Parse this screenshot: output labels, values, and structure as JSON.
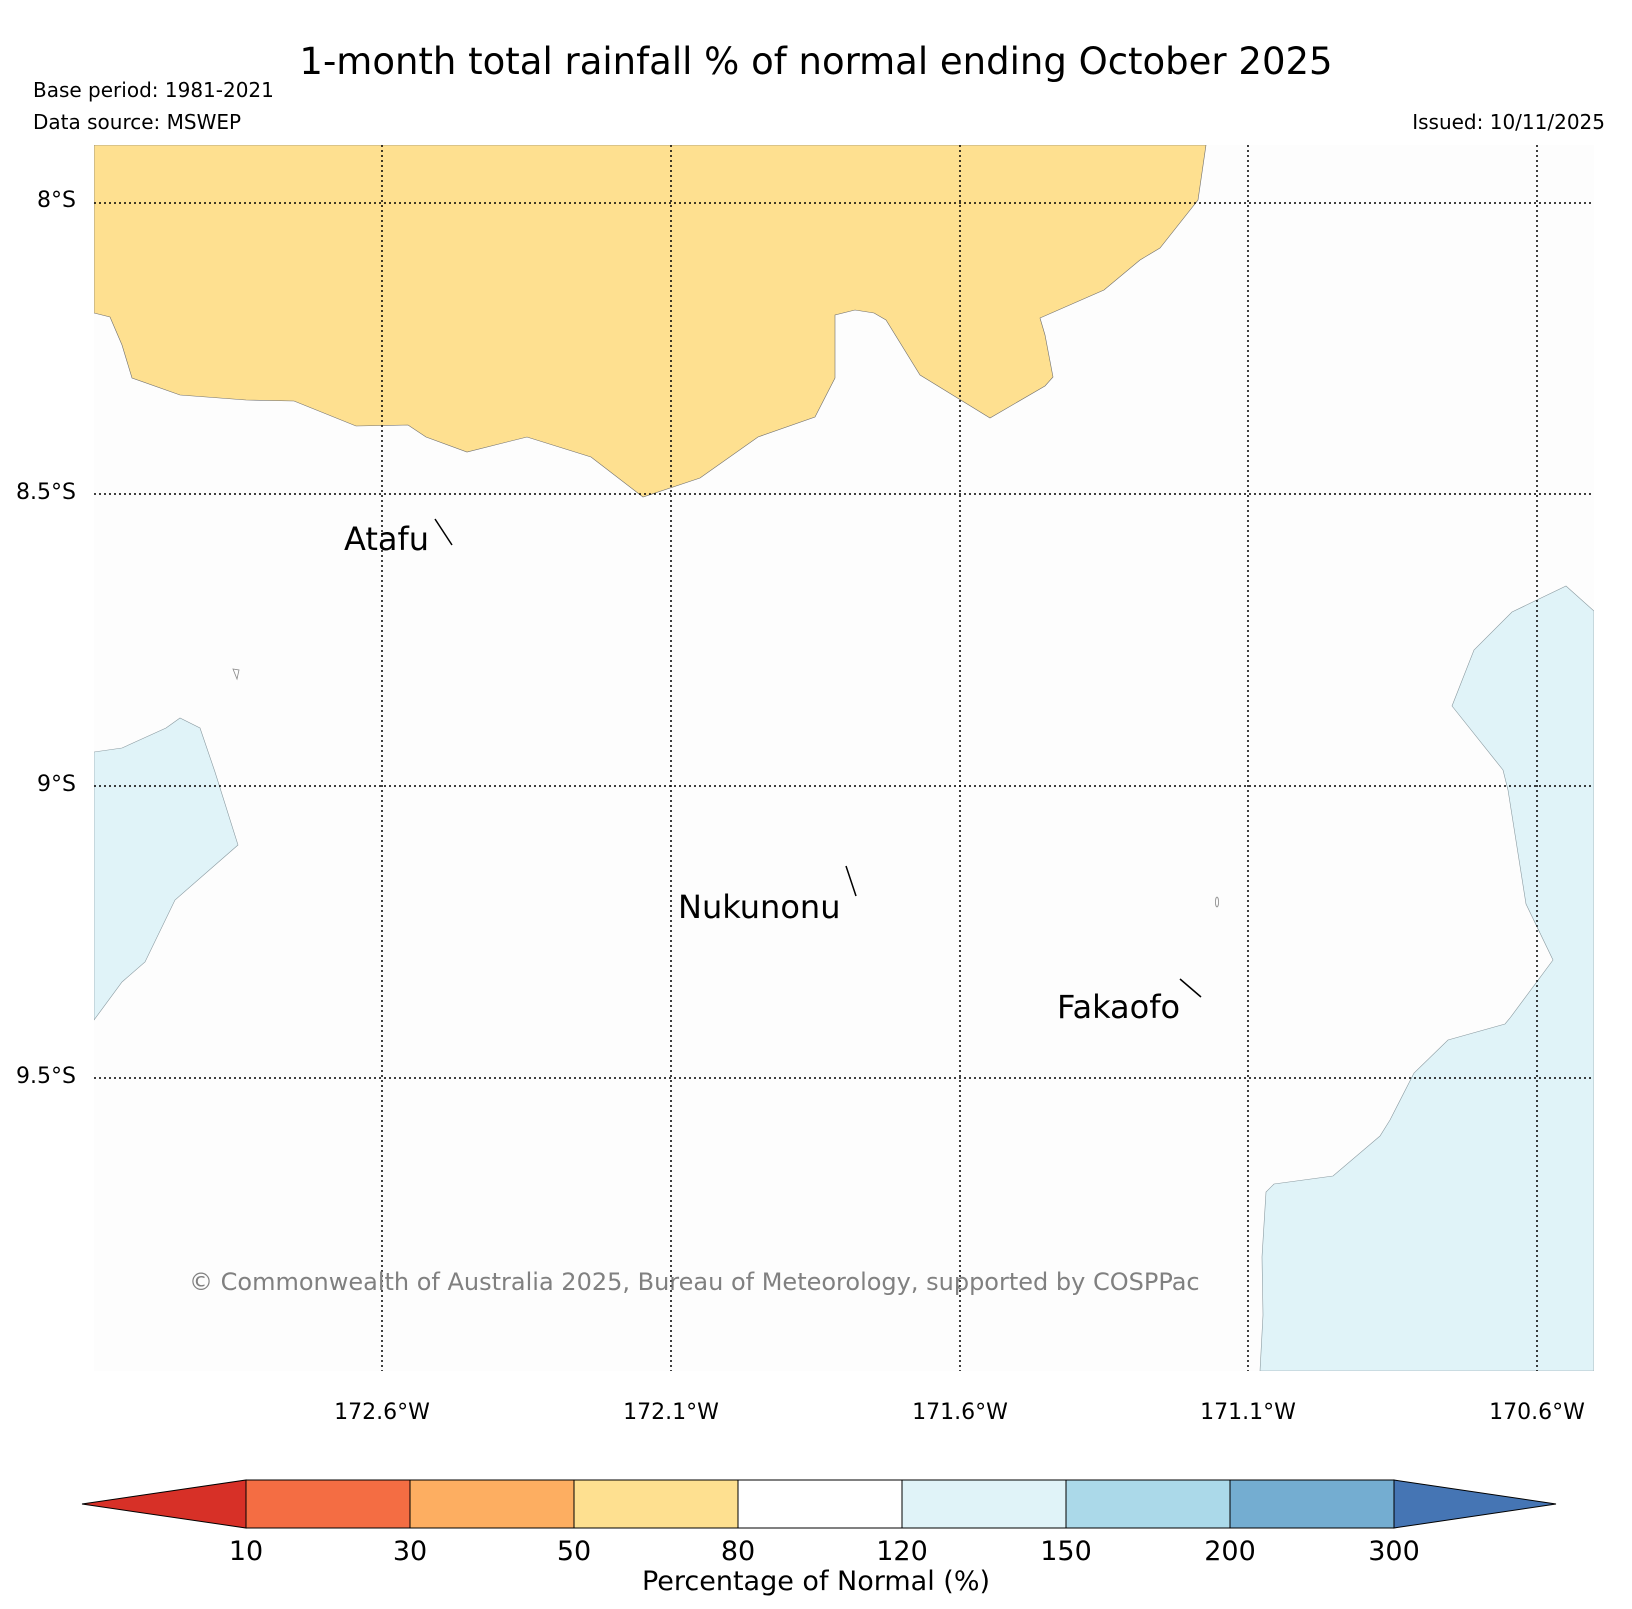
{
  "title": "1-month total rainfall % of normal ending October 2025",
  "base_period": "Base period: 1981-2021",
  "data_source": "Data source: MSWEP",
  "issued": "Issued: 10/11/2025",
  "lat_labels": [
    "8°S",
    "8.5°S",
    "9°S",
    "9.5°S"
  ],
  "lon_labels": [
    "172.6°W",
    "172.1°W",
    "171.6°W",
    "171.1°W",
    "170.6°W"
  ],
  "places": [
    "Atafu",
    "Nukunonu",
    "Fakaofo"
  ],
  "copyright": "© Commonwealth of Australia 2025, Bureau of Meteorology, supported by COSPPac",
  "colorbar": {
    "label": "Percentage of Normal (%)",
    "ticks": [
      "10",
      "30",
      "50",
      "80",
      "120",
      "150",
      "200",
      "300"
    ],
    "colors": [
      "#d73027",
      "#f46d43",
      "#fdae61",
      "#fee090",
      "#ffffff",
      "#e0f3f8",
      "#abd9e9",
      "#74add1",
      "#4575b4"
    ]
  },
  "legend_colors": {
    "dry_region": "#fee090",
    "wet_region": "#e0f3f8",
    "background": "#ffffff"
  }
}
